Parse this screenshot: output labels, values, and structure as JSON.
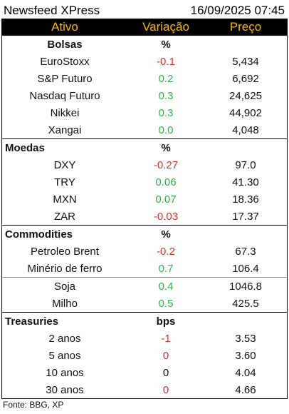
{
  "title": "Newsfeed XPress",
  "datetime": "16/09/2025 07:45",
  "header": {
    "col1": "Ativo",
    "col2": "Variação",
    "col3": "Preço"
  },
  "sections": [
    {
      "name": "Bolsas",
      "unit": "%",
      "rows": [
        {
          "asset": "EuroStoxx",
          "change": "-0.1",
          "price": "5,434",
          "tone": "neg"
        },
        {
          "asset": "S&P Futuro",
          "change": "0.2",
          "price": "6,692",
          "tone": "pos"
        },
        {
          "asset": "Nasdaq Futuro",
          "change": "0.3",
          "price": "24,625",
          "tone": "pos"
        },
        {
          "asset": "Nikkei",
          "change": "0.3",
          "price": "44,902",
          "tone": "pos"
        },
        {
          "asset": "Xangai",
          "change": "0.0",
          "price": "4,048",
          "tone": "pos"
        }
      ]
    },
    {
      "name": "Moedas",
      "unit": "%",
      "rows": [
        {
          "asset": "DXY",
          "change": "-0.27",
          "price": "97.0",
          "tone": "neg"
        },
        {
          "asset": "TRY",
          "change": "0.06",
          "price": "41.30",
          "tone": "pos"
        },
        {
          "asset": "MXN",
          "change": "0.07",
          "price": "18.36",
          "tone": "pos"
        },
        {
          "asset": "ZAR",
          "change": "-0.03",
          "price": "17.37",
          "tone": "neg"
        }
      ]
    },
    {
      "name": "Commodities",
      "unit": "%",
      "rows": [
        {
          "asset": "Petroleo Brent",
          "change": "-0.2",
          "price": "67.3",
          "tone": "neg"
        },
        {
          "asset": "Minério de ferro",
          "change": "0.7",
          "price": "106.4",
          "tone": "pos"
        },
        {
          "asset": "Soja",
          "change": "0.4",
          "price": "1046.8",
          "tone": "pos"
        },
        {
          "asset": "Milho",
          "change": "0.5",
          "price": "425.5",
          "tone": "pos"
        }
      ]
    },
    {
      "name": "Treasuries",
      "unit": "bps",
      "rows": [
        {
          "asset": "2 anos",
          "change": "-1",
          "price": "3.53",
          "tone": "neg"
        },
        {
          "asset": "5 anos",
          "change": "0",
          "price": "3.60",
          "tone": "neg"
        },
        {
          "asset": "10 anos",
          "change": "0",
          "price": "4.04",
          "tone": "neu"
        },
        {
          "asset": "30 anos",
          "change": "0",
          "price": "4.66",
          "tone": "neg"
        }
      ]
    }
  ],
  "footer": "Fonte: BBG, XP",
  "colors": {
    "header_bg": "#000000",
    "header_text": "#f5b800",
    "positive": "#2fb34a",
    "negative": "#e0312b"
  }
}
